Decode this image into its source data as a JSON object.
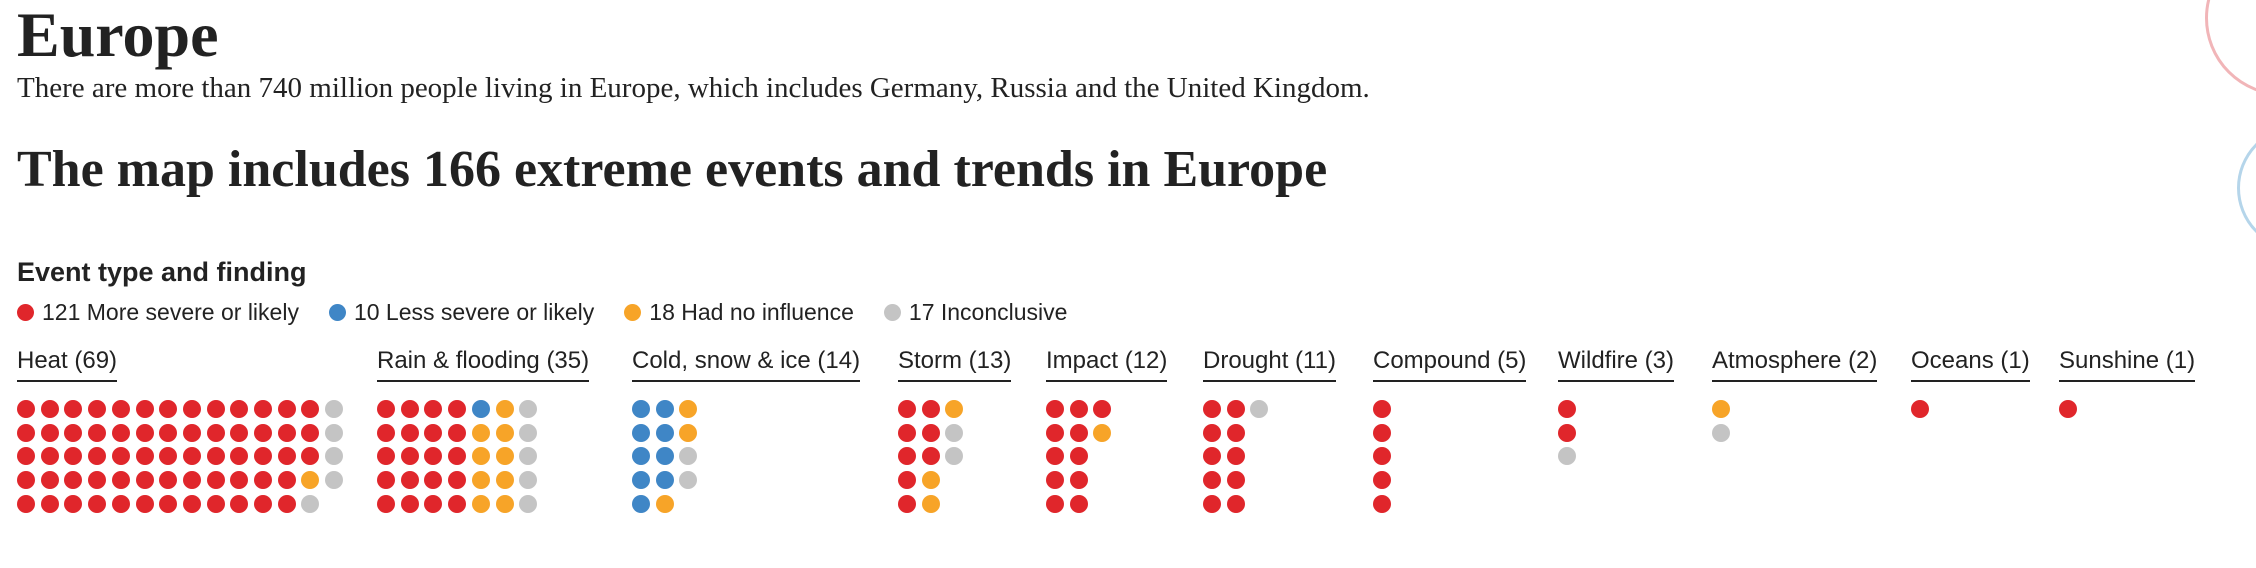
{
  "chart_data": {
    "type": "dot-grid",
    "title": "Europe",
    "subtitle": "There are more than 740 million people living in Europe, which includes Germany, Russia and the United Kingdom.",
    "heading": "The map includes 166 extreme events and trends in Europe",
    "legend_title": "Event type and finding",
    "series": [
      {
        "name": "121 More severe or likely",
        "color": "#e0262b"
      },
      {
        "name": "10 Less severe or likely",
        "color": "#3f86c6"
      },
      {
        "name": "18 Had no influence",
        "color": "#f7a428"
      },
      {
        "name": "17 Inconclusive",
        "color": "#c4c4c4"
      }
    ],
    "groups": [
      {
        "label": "Heat (69)",
        "counts": [
          63,
          0,
          1,
          5
        ]
      },
      {
        "label": "Rain & flooding (35)",
        "counts": [
          20,
          1,
          9,
          5
        ]
      },
      {
        "label": "Cold, snow & ice (14)",
        "counts": [
          0,
          9,
          3,
          2
        ]
      },
      {
        "label": "Storm (13)",
        "counts": [
          8,
          0,
          3,
          2
        ]
      },
      {
        "label": "Impact (12)",
        "counts": [
          11,
          0,
          1,
          0
        ]
      },
      {
        "label": "Drought (11)",
        "counts": [
          10,
          0,
          0,
          1
        ]
      },
      {
        "label": "Compound (5)",
        "counts": [
          5,
          0,
          0,
          0
        ]
      },
      {
        "label": "Wildfire (3)",
        "counts": [
          2,
          0,
          0,
          1
        ]
      },
      {
        "label": "Atmosphere (2)",
        "counts": [
          0,
          0,
          1,
          1
        ]
      },
      {
        "label": "Oceans (1)",
        "counts": [
          1,
          0,
          0,
          0
        ]
      },
      {
        "label": "Sunshine (1)",
        "counts": [
          1,
          0,
          0,
          0
        ]
      }
    ]
  }
}
